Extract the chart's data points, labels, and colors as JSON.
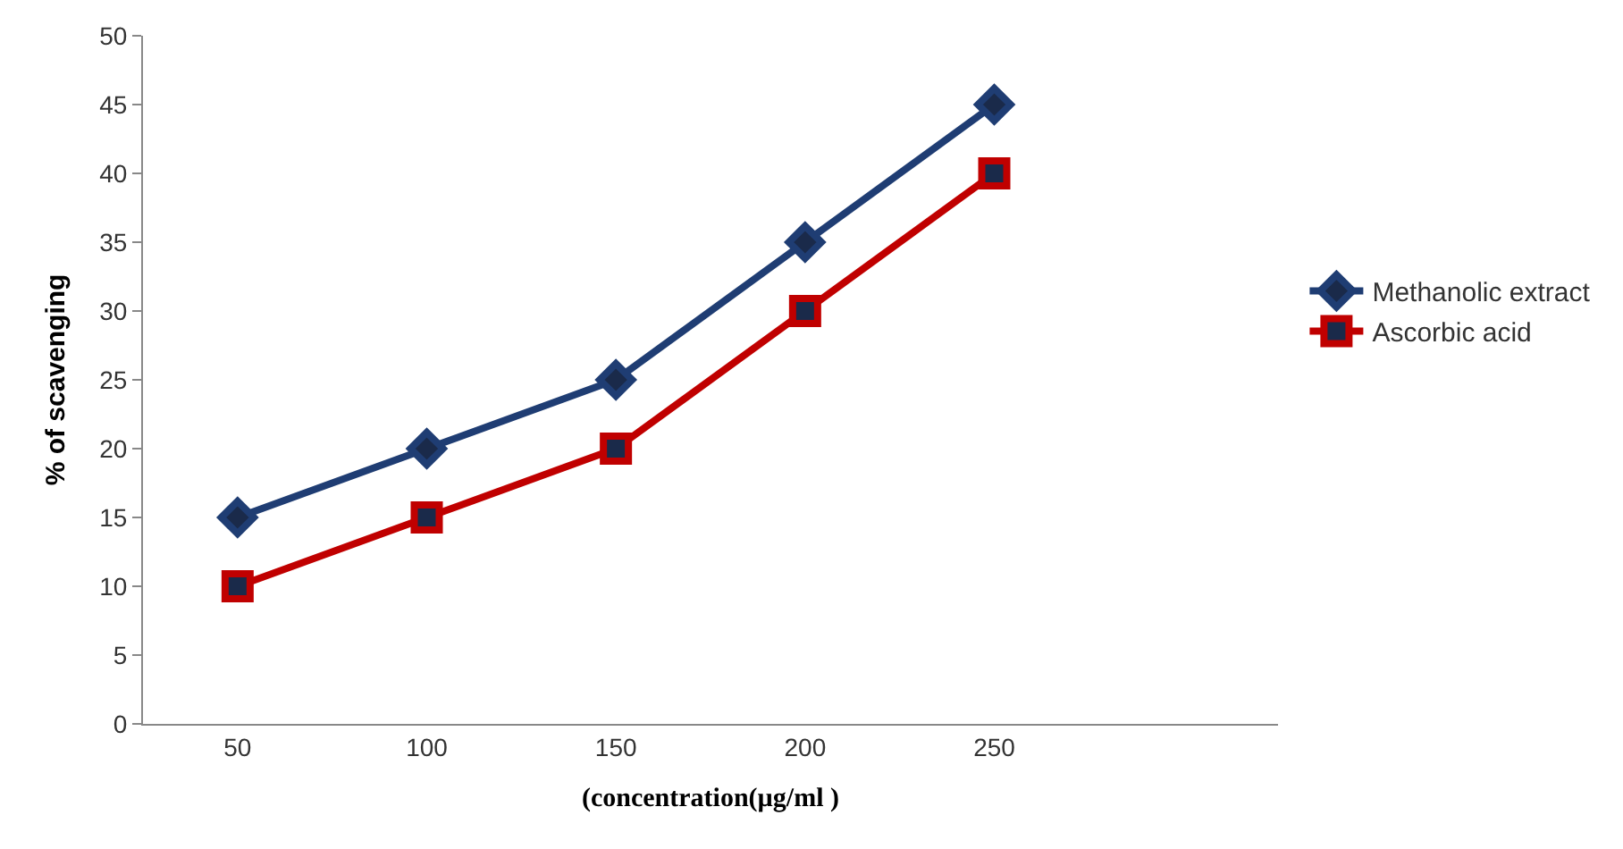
{
  "chart_data": {
    "type": "line",
    "xlabel": "(concentration(µg/ml )",
    "ylabel": "% of scavenging",
    "categories": [
      "50",
      "100",
      "150",
      "200",
      "250",
      null
    ],
    "series": [
      {
        "name": "Methanolic extract",
        "color": "#1f3d73",
        "values": [
          15,
          20,
          25,
          35,
          45,
          null
        ],
        "marker": "diamond"
      },
      {
        "name": "Ascorbic acid",
        "color": "#c00000",
        "values": [
          10,
          15,
          20,
          30,
          40,
          null
        ],
        "marker": "square"
      }
    ],
    "ylim": [
      0,
      50
    ],
    "yticks": [
      0,
      5,
      10,
      15,
      20,
      25,
      30,
      35,
      40,
      45,
      50
    ],
    "legend": "right",
    "line_style": "solid"
  }
}
